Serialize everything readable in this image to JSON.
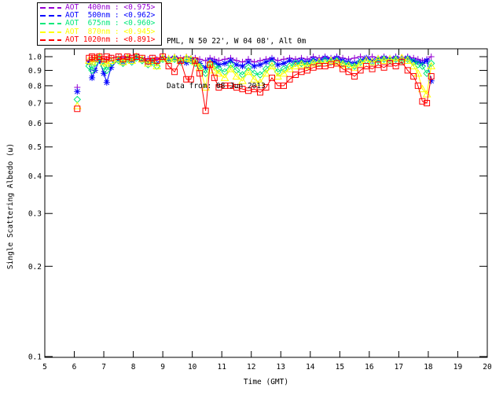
{
  "header": {
    "title": "PML, N 50 22', W 04 08', Alt 0m",
    "subtitle": "Data from: 08 Jun 2013"
  },
  "legend": {
    "items": [
      {
        "label": "AOT  400nm : <0.975>",
        "wavelength": "400nm",
        "mean_value": "<0.975>",
        "color": "#9400D3"
      },
      {
        "label": "AOT  500nm : <0.962>",
        "wavelength": "500nm",
        "mean_value": "<0.962>",
        "color": "#0000FF"
      },
      {
        "label": "AOT  675nm : <0.960>",
        "wavelength": "675nm",
        "mean_value": "<0.960>",
        "color": "#00E87A"
      },
      {
        "label": "AOT  870nm : <0.945>",
        "wavelength": "870nm",
        "mean_value": "<0.945>",
        "color": "#FFFF00"
      },
      {
        "label": "AOT 1020nm : <0.891>",
        "wavelength": "1020nm",
        "mean_value": "<0.891>",
        "color": "#FF0000"
      }
    ]
  },
  "chart_data": {
    "type": "line",
    "title": "PML, N 50 22', W 04 08', Alt 0m",
    "subtitle": "Data from: 08 Jun 2013",
    "xlabel": "Time (GMT)",
    "ylabel": "Single Scattering Albedo (ω)",
    "xlim": [
      5,
      20
    ],
    "ylim": [
      0.1,
      1.0
    ],
    "yscale": "log",
    "grid": false,
    "legend_position": "top-left",
    "xticks": [
      5,
      6,
      7,
      8,
      9,
      10,
      11,
      12,
      13,
      14,
      15,
      16,
      17,
      18,
      19,
      20
    ],
    "yticks": [
      0.1,
      0.2,
      0.3,
      0.4,
      0.5,
      0.6,
      0.7,
      0.8,
      0.9,
      1.0
    ],
    "gap_threshold_hours": 0.35,
    "x": [
      6.1,
      6.5,
      6.6,
      6.7,
      6.85,
      7.0,
      7.1,
      7.25,
      7.5,
      7.65,
      7.8,
      7.95,
      8.1,
      8.3,
      8.5,
      8.65,
      8.8,
      9.0,
      9.2,
      9.4,
      9.6,
      9.8,
      9.95,
      10.1,
      10.25,
      10.45,
      10.6,
      10.75,
      10.9,
      11.1,
      11.3,
      11.5,
      11.7,
      11.9,
      12.1,
      12.3,
      12.5,
      12.7,
      12.9,
      13.1,
      13.3,
      13.5,
      13.7,
      13.9,
      14.1,
      14.3,
      14.5,
      14.7,
      14.9,
      15.1,
      15.3,
      15.5,
      15.7,
      15.9,
      16.1,
      16.3,
      16.5,
      16.7,
      16.9,
      17.1,
      17.3,
      17.5,
      17.65,
      17.8,
      17.95,
      18.1
    ],
    "series": [
      {
        "name": "AOT 400nm",
        "marker": "plus",
        "color": "#9400D3",
        "values": [
          0.79,
          0.97,
          0.98,
          0.99,
          1.0,
          0.98,
          0.97,
          0.99,
          1.0,
          0.99,
          1.0,
          0.99,
          1.0,
          0.99,
          0.98,
          0.99,
          0.98,
          1.0,
          0.99,
          1.0,
          0.99,
          1.0,
          0.99,
          0.99,
          0.98,
          0.97,
          0.99,
          0.98,
          0.97,
          0.98,
          0.99,
          0.97,
          0.96,
          0.98,
          0.96,
          0.97,
          0.98,
          0.99,
          0.97,
          0.98,
          0.99,
          0.98,
          0.99,
          0.98,
          1.0,
          0.99,
          1.0,
          0.99,
          1.0,
          0.99,
          0.98,
          0.99,
          1.0,
          0.99,
          1.0,
          0.99,
          1.0,
          0.99,
          1.0,
          0.99,
          1.0,
          0.99,
          0.98,
          0.97,
          0.98,
          1.0
        ]
      },
      {
        "name": "AOT 500nm",
        "marker": "asterisk",
        "color": "#0000FF",
        "values": [
          0.765,
          0.96,
          0.85,
          0.9,
          0.97,
          0.88,
          0.82,
          0.92,
          0.98,
          0.96,
          0.99,
          0.97,
          1.0,
          0.98,
          0.96,
          0.97,
          0.95,
          0.99,
          0.98,
          0.99,
          0.97,
          0.955,
          0.98,
          0.97,
          0.95,
          0.92,
          0.97,
          0.96,
          0.94,
          0.95,
          0.97,
          0.94,
          0.93,
          0.96,
          0.93,
          0.94,
          0.96,
          0.98,
          0.94,
          0.95,
          0.97,
          0.96,
          0.97,
          0.96,
          0.98,
          0.97,
          0.99,
          0.98,
          0.99,
          0.97,
          0.96,
          0.95,
          0.97,
          0.99,
          0.97,
          0.98,
          0.99,
          0.98,
          0.99,
          0.98,
          0.99,
          0.97,
          0.96,
          0.95,
          0.97,
          0.83
        ]
      },
      {
        "name": "AOT 675nm",
        "marker": "diamond",
        "color": "#00E87A",
        "values": [
          0.72,
          0.93,
          0.9,
          0.95,
          0.99,
          0.93,
          0.9,
          0.95,
          0.97,
          0.95,
          0.98,
          0.96,
          0.99,
          0.97,
          0.94,
          0.96,
          0.93,
          0.98,
          0.97,
          0.98,
          0.96,
          0.98,
          0.97,
          0.95,
          0.93,
          0.88,
          0.95,
          0.93,
          0.91,
          0.89,
          0.94,
          0.9,
          0.87,
          0.92,
          0.88,
          0.87,
          0.91,
          0.95,
          0.89,
          0.91,
          0.93,
          0.95,
          0.95,
          0.94,
          0.96,
          0.95,
          0.97,
          0.96,
          0.97,
          0.95,
          0.94,
          0.93,
          0.96,
          0.97,
          0.96,
          0.97,
          0.98,
          0.97,
          0.98,
          0.97,
          0.98,
          0.96,
          0.94,
          0.93,
          0.88,
          0.95
        ]
      },
      {
        "name": "AOT 870nm",
        "marker": "triangle",
        "color": "#FFFF00",
        "values": [
          0.685,
          0.97,
          0.96,
          0.98,
          1.0,
          0.96,
          0.95,
          0.97,
          0.98,
          0.96,
          0.99,
          0.97,
          1.0,
          0.98,
          0.95,
          0.97,
          0.93,
          0.99,
          0.98,
          0.99,
          0.97,
          0.99,
          0.98,
          0.96,
          0.92,
          0.79,
          0.95,
          0.9,
          0.88,
          0.85,
          0.91,
          0.86,
          0.83,
          0.89,
          0.84,
          0.82,
          0.88,
          0.93,
          0.86,
          0.88,
          0.91,
          0.93,
          0.94,
          0.93,
          0.95,
          0.96,
          0.95,
          0.97,
          0.96,
          0.94,
          0.93,
          0.92,
          0.95,
          0.97,
          0.96,
          0.98,
          0.97,
          0.98,
          0.97,
          0.99,
          0.97,
          0.93,
          0.88,
          0.78,
          0.75,
          0.93
        ]
      },
      {
        "name": "AOT 1020nm",
        "marker": "square",
        "color": "#FF0000",
        "values": [
          0.67,
          0.99,
          1.0,
          0.99,
          1.0,
          0.98,
          1.0,
          0.99,
          1.0,
          0.98,
          1.0,
          0.99,
          1.0,
          0.99,
          0.965,
          0.99,
          0.97,
          1.0,
          0.93,
          0.89,
          0.97,
          0.84,
          0.84,
          0.97,
          0.88,
          0.66,
          0.94,
          0.85,
          0.79,
          0.8,
          0.8,
          0.79,
          0.78,
          0.77,
          0.78,
          0.76,
          0.79,
          0.85,
          0.8,
          0.8,
          0.84,
          0.87,
          0.89,
          0.9,
          0.92,
          0.93,
          0.93,
          0.94,
          0.95,
          0.91,
          0.89,
          0.86,
          0.9,
          0.93,
          0.91,
          0.94,
          0.92,
          0.95,
          0.93,
          0.96,
          0.9,
          0.86,
          0.8,
          0.71,
          0.7,
          0.86
        ]
      }
    ]
  }
}
